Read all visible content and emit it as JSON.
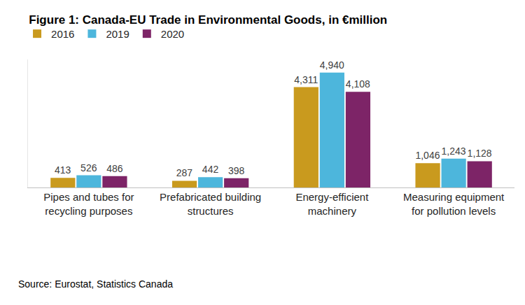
{
  "chart_data": {
    "type": "bar",
    "title": "Figure 1: Canada-EU Trade in Environmental Goods, in €million",
    "source": "Source: Eurostat, Statistics Canada",
    "categories": [
      "Pipes and tubes for recycling purposes",
      "Prefabricated building structures",
      "Energy-efficient machinery",
      "Measuring equipment for pollution levels"
    ],
    "series": [
      {
        "name": "2016",
        "color": "#c99a1e",
        "values": [
          413,
          287,
          4311,
          1046
        ],
        "value_labels": [
          "413",
          "287",
          "4,311",
          "1,046"
        ]
      },
      {
        "name": "2019",
        "color": "#4db6dc",
        "values": [
          526,
          442,
          4940,
          1243
        ],
        "value_labels": [
          "526",
          "442",
          "4,940",
          "1,243"
        ]
      },
      {
        "name": "2020",
        "color": "#7d2467",
        "values": [
          486,
          398,
          4108,
          1128
        ],
        "value_labels": [
          "486",
          "398",
          "4,108",
          "1,128"
        ]
      }
    ],
    "ylim": [
      0,
      5500
    ],
    "tick_labels": "x",
    "grid": false,
    "legend": "top-left",
    "data_labels": true
  }
}
